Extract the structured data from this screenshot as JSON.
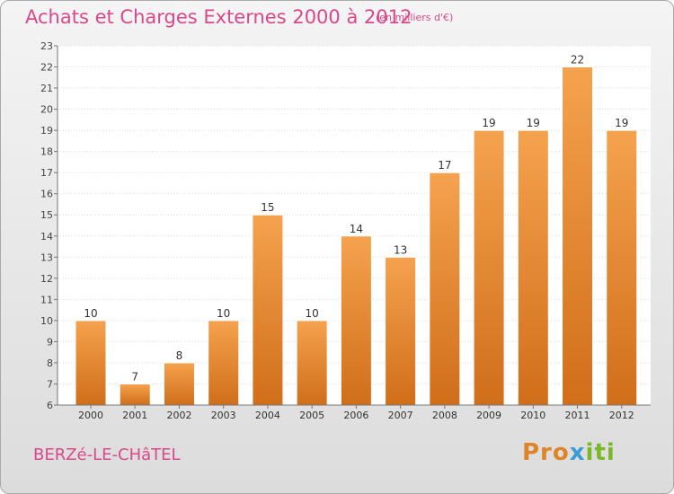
{
  "header": {
    "title": "Achats et Charges Externes 2000 à 2012",
    "subtitle": "(en milliers d'€)"
  },
  "footer": {
    "commune": "BERZé-LE-CHâTEL",
    "brand_part1": "Pro",
    "brand_part2": "x",
    "brand_part3": "iti"
  },
  "colors": {
    "title": "#d9488a",
    "bar_light": "#f5a24e",
    "bar_dark": "#d06e1a",
    "axis": "#777777"
  },
  "chart_data": {
    "type": "bar",
    "title": "Achats et Charges Externes 2000 à 2012",
    "subtitle": "(en milliers d'€)",
    "categories": [
      "2000",
      "2001",
      "2002",
      "2003",
      "2004",
      "2005",
      "2006",
      "2007",
      "2008",
      "2009",
      "2010",
      "2011",
      "2012"
    ],
    "values": [
      10,
      7,
      8,
      10,
      15,
      10,
      14,
      13,
      17,
      19,
      19,
      22,
      19
    ],
    "data_labels": [
      "10",
      "7",
      "8",
      "10",
      "15",
      "10",
      "14",
      "13",
      "17",
      "19",
      "19",
      "22",
      "19"
    ],
    "ylim": [
      6,
      23
    ],
    "yticks": [
      "6",
      "7",
      "8",
      "9",
      "10",
      "11",
      "12",
      "13",
      "14",
      "15",
      "16",
      "17",
      "18",
      "19",
      "20",
      "21",
      "22",
      "23"
    ],
    "grid": true
  }
}
